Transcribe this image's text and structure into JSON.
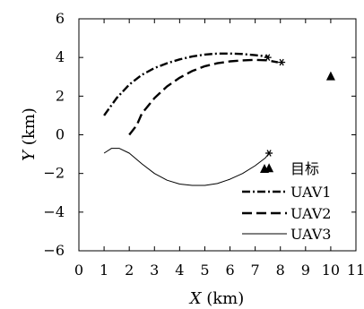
{
  "chart_data": {
    "type": "line",
    "title": "",
    "xlabel": "X",
    "xlabel_unit": " (km)",
    "ylabel": "Y",
    "ylabel_unit": " (km)",
    "xlim": [
      0,
      11
    ],
    "ylim": [
      -6,
      6
    ],
    "xticks": [
      "0",
      "1",
      "2",
      "3",
      "4",
      "5",
      "6",
      "7",
      "8",
      "9",
      "10",
      "11"
    ],
    "yticks": [
      "6",
      "4",
      "2",
      "0",
      "−2",
      "−4",
      "−6"
    ],
    "ytick_values": [
      6,
      4,
      2,
      0,
      -2,
      -4,
      -6
    ],
    "grid": false,
    "legend_position": "bottom-right",
    "series": [
      {
        "name": "UAV1",
        "style": "dash-dot",
        "color": "#000000",
        "x": [
          1.0,
          1.5,
          2.0,
          2.5,
          3.0,
          3.5,
          4.0,
          4.5,
          5.0,
          5.5,
          6.0,
          6.5,
          7.0,
          7.5
        ],
        "y": [
          1.0,
          1.9,
          2.6,
          3.1,
          3.45,
          3.7,
          3.9,
          4.05,
          4.15,
          4.2,
          4.2,
          4.18,
          4.12,
          4.05
        ]
      },
      {
        "name": "UAV2",
        "style": "dashed",
        "color": "#000000",
        "x": [
          2.0,
          2.3,
          2.5,
          3.0,
          3.5,
          4.0,
          4.5,
          5.0,
          5.5,
          6.0,
          6.5,
          7.0,
          7.5,
          7.9
        ],
        "y": [
          0.0,
          0.5,
          1.1,
          1.9,
          2.5,
          2.95,
          3.3,
          3.55,
          3.7,
          3.8,
          3.85,
          3.88,
          3.85,
          3.75
        ]
      },
      {
        "name": "UAV3",
        "style": "solid",
        "color": "#000000",
        "x": [
          1.0,
          1.3,
          1.6,
          2.0,
          2.5,
          3.0,
          3.5,
          4.0,
          4.5,
          5.0,
          5.5,
          6.0,
          6.5,
          7.0,
          7.4,
          7.55
        ],
        "y": [
          -0.95,
          -0.7,
          -0.7,
          -0.95,
          -1.5,
          -2.0,
          -2.35,
          -2.55,
          -2.62,
          -2.62,
          -2.52,
          -2.3,
          -2.0,
          -1.6,
          -1.2,
          -0.95
        ]
      }
    ],
    "star_markers": [
      {
        "x": 7.5,
        "y": 4.0
      },
      {
        "x": 8.05,
        "y": 3.75
      },
      {
        "x": 7.55,
        "y": -0.95
      }
    ],
    "targets": [
      {
        "x": 10.0,
        "y": 3.05
      },
      {
        "x": 7.55,
        "y": -1.7
      }
    ],
    "legend": {
      "target_label": "目标",
      "entries": [
        "UAV1",
        "UAV2",
        "UAV3"
      ]
    }
  }
}
